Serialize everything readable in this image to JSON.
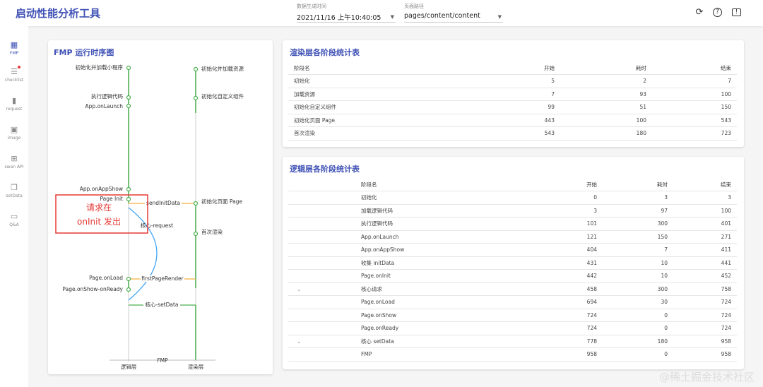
{
  "header": {
    "title": "启动性能分析工具",
    "time_label": "数据生成时间",
    "time_value": "2021/11/16 上午10:40:05",
    "path_label": "页面路径",
    "path_value": "pages/content/content",
    "icons": [
      "refresh-icon",
      "help-icon",
      "feedback-icon"
    ]
  },
  "sidebar": {
    "items": [
      {
        "label": "FMP",
        "icon": "dashboard-icon",
        "active": true
      },
      {
        "label": "checklist",
        "icon": "checklist-icon",
        "badge": true
      },
      {
        "label": "request",
        "icon": "bar-chart-icon"
      },
      {
        "label": "image",
        "icon": "image-icon"
      },
      {
        "label": "swan API",
        "icon": "add-library-icon"
      },
      {
        "label": "setData",
        "icon": "copy-icon"
      },
      {
        "label": "Q&A",
        "icon": "chat-icon"
      }
    ]
  },
  "fmp": {
    "title": "FMP 运行时序图",
    "logic_nodes": [
      "初始化并加载小程序",
      "执行逻辑代码",
      "App.onLaunch",
      "App.onAppShow",
      "Page Init",
      "Page.onLoad",
      "Page.onShow-onReady"
    ],
    "render_nodes": [
      "初始化并加载资源",
      "初始化自定义组件",
      "初始化页面 Page",
      "首次渲染"
    ],
    "links": {
      "send": "sendInitData",
      "request": "核心-request",
      "first": "firstPageRender",
      "setdata": "核心-setData"
    },
    "axis": {
      "fmp": "FMP",
      "logic": "逻辑层",
      "render": "渲染层"
    },
    "annotation": {
      "line1": "请求在",
      "line2": "onInit 发出",
      "color": "#e53935"
    },
    "colors": {
      "green": "#4caf50",
      "orange": "#f5b041",
      "blue": "#42a5f5"
    }
  },
  "render_table": {
    "title": "渲染层各阶段统计表",
    "headers": [
      "阶段名",
      "开始",
      "耗时",
      "结束"
    ],
    "rows": [
      [
        "初始化",
        "5",
        "2",
        "7"
      ],
      [
        "加载资源",
        "7",
        "93",
        "100"
      ],
      [
        "初始化自定义组件",
        "99",
        "51",
        "150"
      ],
      [
        "初始化页面 Page",
        "443",
        "100",
        "543"
      ],
      [
        "首次渲染",
        "543",
        "180",
        "723"
      ]
    ]
  },
  "logic_table": {
    "title": "逻辑层各阶段统计表",
    "headers": [
      "阶段名",
      "开始",
      "耗时",
      "结束"
    ],
    "rows": [
      [
        "",
        "初始化",
        "0",
        "3",
        "3"
      ],
      [
        "",
        "加载逻辑代码",
        "3",
        "97",
        "100"
      ],
      [
        "",
        "执行逻辑代码",
        "101",
        "300",
        "401"
      ],
      [
        "",
        "App.onLaunch",
        "121",
        "150",
        "271"
      ],
      [
        "",
        "App.onAppShow",
        "404",
        "7",
        "411"
      ],
      [
        "",
        "收集 initData",
        "431",
        "10",
        "441"
      ],
      [
        "",
        "Page.onInit",
        "442",
        "10",
        "452"
      ],
      [
        "⌄",
        "核心请求",
        "458",
        "300",
        "758"
      ],
      [
        "",
        "Page.onLoad",
        "694",
        "30",
        "724"
      ],
      [
        "",
        "Page.onShow",
        "724",
        "0",
        "724"
      ],
      [
        "",
        "Page.onReady",
        "724",
        "0",
        "724"
      ],
      [
        "⌄",
        "核心 setData",
        "778",
        "180",
        "958"
      ],
      [
        "",
        "FMP",
        "958",
        "0",
        "958"
      ]
    ]
  },
  "watermark": "@稀土掘金技术社区"
}
